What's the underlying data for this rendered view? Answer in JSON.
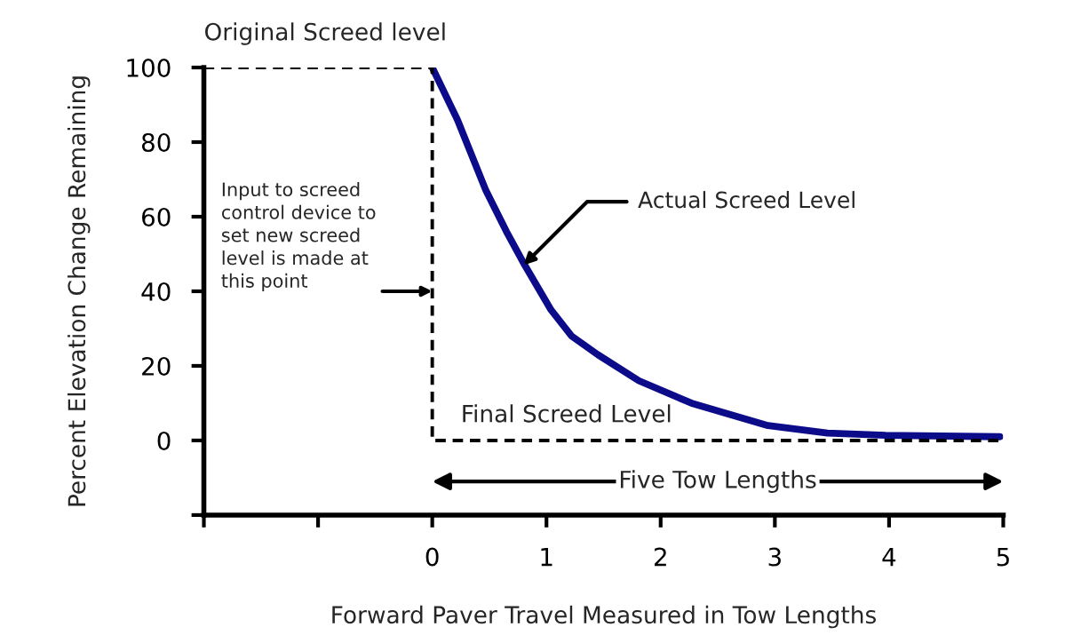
{
  "chart_data": {
    "type": "line",
    "xlabel": "Forward Paver Travel Measured in Tow Lengths",
    "ylabel": "Percent Elevation Change Remaining",
    "xlim": [
      -2,
      5
    ],
    "xticks": [
      {
        "value": -2,
        "label": null
      },
      {
        "value": -1,
        "label": null
      },
      0,
      1,
      2,
      3,
      4,
      5
    ],
    "ylim": [
      -20,
      100
    ],
    "yticks": [
      {
        "value": -20,
        "label": null
      },
      0,
      20,
      40,
      60,
      80,
      100
    ],
    "grid": false,
    "legend": false,
    "marker": "none",
    "series": [
      {
        "color": "#0c0c8a",
        "line_style": "solid",
        "x": [
          0,
          0.22,
          0.47,
          0.65,
          0.81,
          1.04,
          1.22,
          1.45,
          1.81,
          2.27,
          2.94,
          3.46,
          3.97,
          4.97
        ],
        "values": [
          100,
          86,
          67,
          56,
          47,
          35,
          28,
          23,
          16,
          10,
          4,
          2,
          1.4,
          1
        ]
      },
      {
        "color": "#000000",
        "line_style": "dashed",
        "x": [
          -2,
          0,
          0,
          5
        ],
        "values": [
          100,
          100,
          0,
          0
        ]
      }
    ],
    "annotations": [
      "Original Screed level",
      "Five Tow Lengths",
      {
        "text": "Input to screed\ncontrol device to\nset new screed\nlevel is made at\nthis point",
        "x": 0,
        "y": 40
      },
      {
        "text": "Actual Screed Level",
        "x": 0.8,
        "y": 47
      },
      "Final Screed Level"
    ]
  }
}
